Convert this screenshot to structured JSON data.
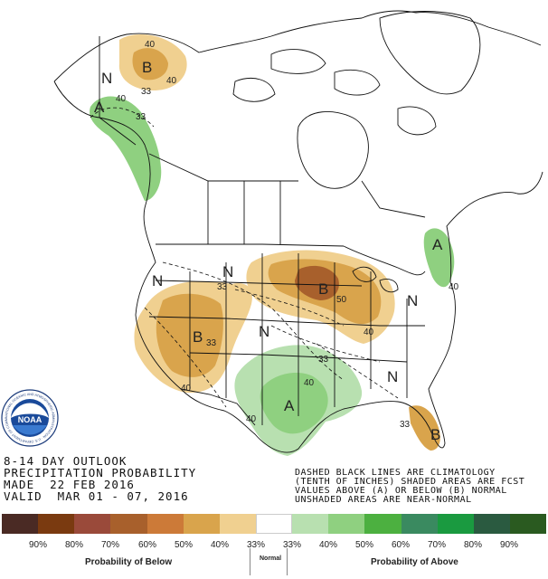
{
  "outlook": {
    "line1": "8-14 DAY OUTLOOK",
    "line2": "PRECIPITATION PROBABILITY",
    "line3": "MADE  22 FEB 2016",
    "line4": "VALID  MAR 01 - 07, 2016"
  },
  "notes": {
    "line1": "DASHED BLACK LINES ARE CLIMATOLOGY",
    "line2": "(TENTH OF INCHES) SHADED AREAS ARE FCST",
    "line3": "VALUES ABOVE (A) OR BELOW (B) NORMAL",
    "line4": "UNSHADED AREAS ARE NEAR-NORMAL"
  },
  "logo": {
    "text": "NOAA",
    "ring_text": "NATIONAL OCEANIC AND ATMOSPHERIC ADMINISTRATION · U.S. DEPARTMENT OF COMMERCE"
  },
  "map": {
    "region_labels": {
      "alaska_b": "B",
      "alaska_n": "N",
      "alaska_a": "A",
      "nw_n": "N",
      "north_n": "N",
      "west_b": "B",
      "plains_n": "N",
      "glakes_b": "B",
      "south_a": "A",
      "se_n": "N",
      "florida_b": "B",
      "ne_a": "A",
      "east_n": "N"
    },
    "contour_labels": [
      "40",
      "40",
      "33",
      "40",
      "33",
      "40",
      "33",
      "50",
      "40",
      "33",
      "40",
      "40",
      "33",
      "33",
      "40"
    ]
  },
  "legend": {
    "colors": [
      "#4a2a24",
      "#7a3a10",
      "#9a4a3a",
      "#a8602c",
      "#cc7a38",
      "#d9a44c",
      "#f0d090",
      "#ffffff",
      "#b8e0b0",
      "#8fd080",
      "#4cb040",
      "#3a8a60",
      "#1a9a40",
      "#2a5a40",
      "#2a5a20"
    ],
    "below_labels": [
      "90%",
      "80%",
      "70%",
      "60%",
      "50%",
      "40%",
      "33%"
    ],
    "above_labels": [
      "33%",
      "40%",
      "50%",
      "60%",
      "70%",
      "80%",
      "90%"
    ],
    "below_caption": "Probability of Below",
    "normal_caption": "Normal",
    "above_caption": "Probability of Above"
  }
}
